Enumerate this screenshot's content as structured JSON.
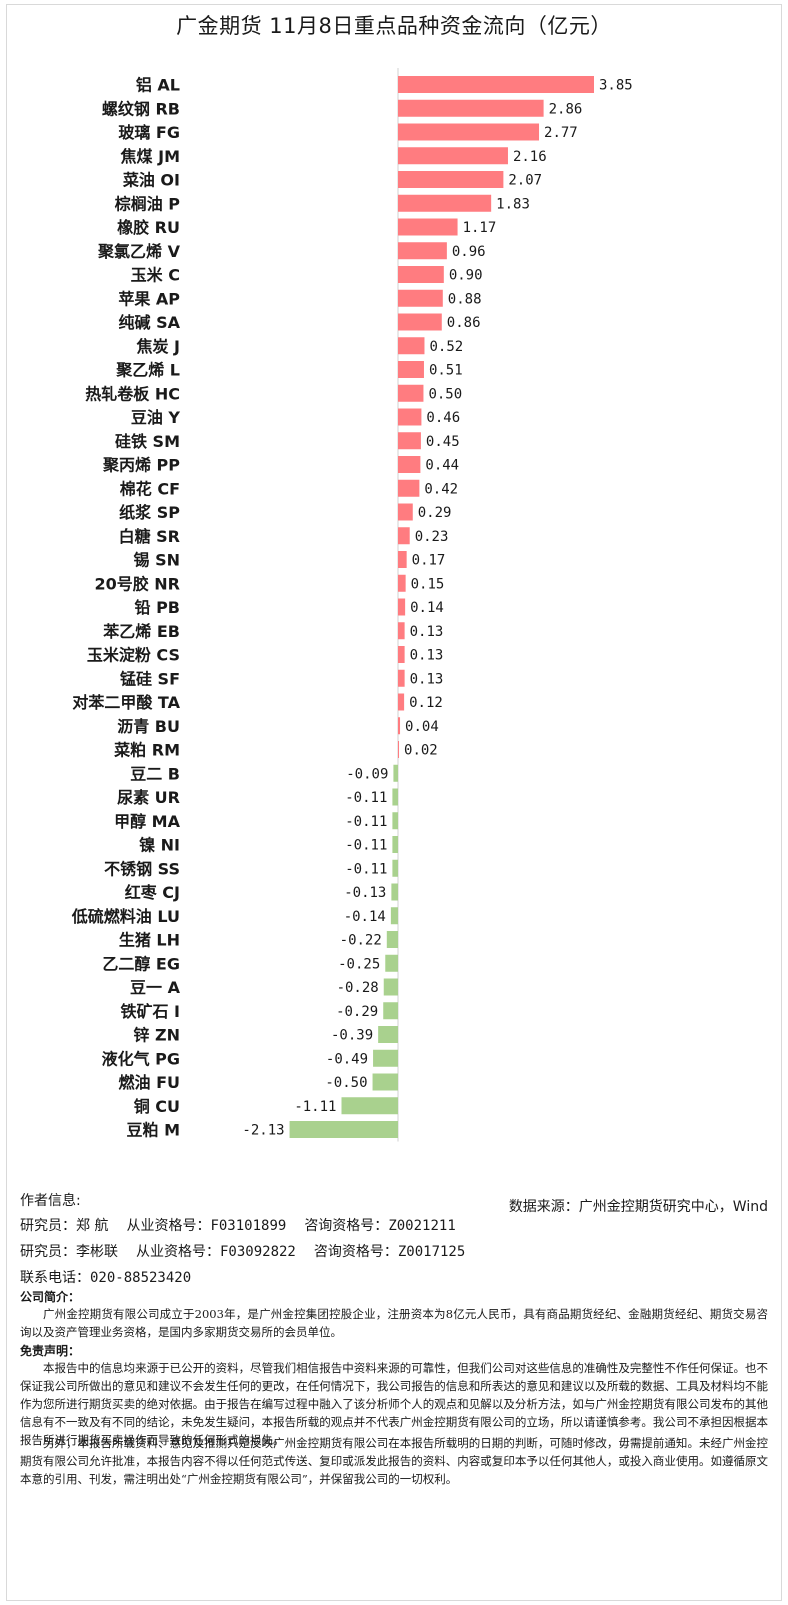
{
  "title": "广金期货 11月8日重点品种资金流向（亿元）",
  "chart_data": {
    "type": "bar",
    "orientation": "horizontal",
    "title": "广金期货 11月8日重点品种资金流向（亿元）",
    "xlabel": "",
    "ylabel": "",
    "positive_color": "#ff7c80",
    "negative_color": "#a9d18e",
    "categories": [
      "铝 AL",
      "螺纹钢 RB",
      "玻璃 FG",
      "焦煤 JM",
      "菜油 OI",
      "棕榈油 P",
      "橡胶 RU",
      "聚氯乙烯 V",
      "玉米 C",
      "苹果 AP",
      "纯碱 SA",
      "焦炭 J",
      "聚乙烯 L",
      "热轧卷板 HC",
      "豆油 Y",
      "硅铁 SM",
      "聚丙烯 PP",
      "棉花 CF",
      "纸浆 SP",
      "白糖 SR",
      "锡 SN",
      "20号胶 NR",
      "铅 PB",
      "苯乙烯 EB",
      "玉米淀粉 CS",
      "锰硅 SF",
      "对苯二甲酸 TA",
      "沥青 BU",
      "菜粕 RM",
      "豆二 B",
      "尿素 UR",
      "甲醇 MA",
      "镍 NI",
      "不锈钢 SS",
      "红枣 CJ",
      "低硫燃料油 LU",
      "生猪 LH",
      "乙二醇 EG",
      "豆一 A",
      "铁矿石 I",
      "锌 ZN",
      "液化气 PG",
      "燃油 FU",
      "铜 CU",
      "豆粕 M"
    ],
    "values": [
      3.85,
      2.86,
      2.77,
      2.16,
      2.07,
      1.83,
      1.17,
      0.96,
      0.9,
      0.88,
      0.86,
      0.52,
      0.51,
      0.5,
      0.46,
      0.45,
      0.44,
      0.42,
      0.29,
      0.23,
      0.17,
      0.15,
      0.14,
      0.13,
      0.13,
      0.13,
      0.12,
      0.04,
      0.02,
      -0.09,
      -0.11,
      -0.11,
      -0.11,
      -0.11,
      -0.13,
      -0.14,
      -0.22,
      -0.25,
      -0.28,
      -0.29,
      -0.39,
      -0.49,
      -0.5,
      -1.11,
      -2.13
    ],
    "value_labels": [
      "3.85",
      "2.86",
      "2.77",
      "2.16",
      "2.07",
      "1.83",
      "1.17",
      "0.96",
      "0.90",
      "0.88",
      "0.86",
      "0.52",
      "0.51",
      "0.50",
      "0.46",
      "0.45",
      "0.44",
      "0.42",
      "0.29",
      "0.23",
      "0.17",
      "0.15",
      "0.14",
      "0.13",
      "0.13",
      "0.13",
      "0.12",
      "0.04",
      "0.02",
      "-0.09",
      "-0.11",
      "-0.11",
      "-0.11",
      "-0.11",
      "-0.13",
      "-0.14",
      "-0.22",
      "-0.25",
      "-0.28",
      "-0.29",
      "-0.39",
      "-0.49",
      "-0.50",
      "-1.11",
      "-2.13"
    ],
    "legend": "none",
    "grid": false
  },
  "source": "数据来源：广州金控期货研究中心，Wind",
  "author": {
    "heading": "作者信息:",
    "researchers": [
      {
        "label": "研究员：",
        "name": "郑 航",
        "cert_label": "从业资格号：",
        "cert": "F03101899",
        "consult_label": "咨询资格号：",
        "consult": "Z0021211"
      },
      {
        "label": "研究员：",
        "name": "李彬联",
        "cert_label": "从业资格号：",
        "cert": "F03092822",
        "consult_label": "咨询资格号：",
        "consult": "Z0017125"
      }
    ],
    "phone_label": "联系电话：",
    "phone": "020-88523420"
  },
  "company": {
    "heading": "公司简介：",
    "text": "广州金控期货有限公司成立于2003年，是广州金控集团控股企业，注册资本为8亿元人民币，具有商品期货经纪、金融期货经纪、期货交易咨询以及资产管理业务资格，是国内多家期货交易所的会员单位。"
  },
  "disclaimer": {
    "heading": "免责声明：",
    "p1": "本报告中的信息均来源于已公开的资料，尽管我们相信报告中资料来源的可靠性，但我们公司对这些信息的准确性及完整性不作任何保证。也不保证我公司所做出的意见和建议不会发生任何的更改，在任何情况下，我公司报告的信息和所表达的意见和建议以及所载的数据、工具及材料均不能作为您所进行期货买卖的绝对依据。由于报告在编写过程中融入了该分析师个人的观点和见解以及分析方法，如与广州金控期货有限公司发布的其他信息有不一致及有不同的结论，未免发生疑问，本报告所载的观点并不代表广州金控期货有限公司的立场，所以请谨慎参考。我公司不承担因根据本报告所进行期货买卖操作而导致的任何形式的损失。",
    "p2": "另外，本报告所载资料、意见及推测只是反映广州金控期货有限公司在本报告所载明的日期的判断，可随时修改，毋需提前通知。未经广州金控期货有限公司允许批准，本报告内容不得以任何范式传送、复印或派发此报告的资料、内容或复印本予以任何其他人，或投入商业使用。如遵循原文本意的引用、刊发，需注明出处“广州金控期货有限公司”，并保留我公司的一切权利。"
  }
}
